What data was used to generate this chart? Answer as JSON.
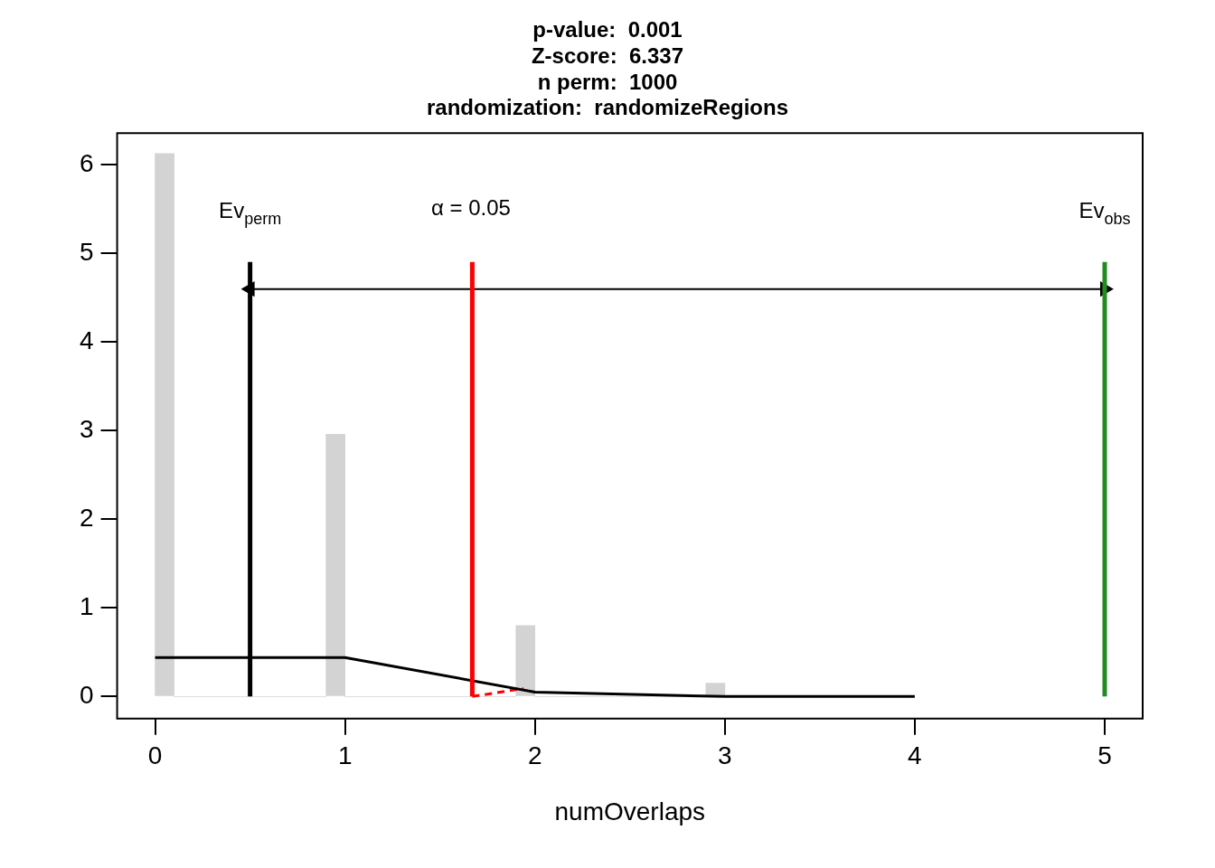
{
  "chart_data": {
    "type": "histogram",
    "title": "p-value:  0.001\nZ-score:  6.337\nn perm:  1000\nrandomization:  randomizeRegions",
    "xlabel": "numOverlaps",
    "bins": [
      0,
      0.1,
      0.2,
      0.3,
      0.4,
      0.5,
      0.6,
      0.7,
      0.8,
      0.9,
      1,
      1.1,
      1.2,
      1.3,
      1.4,
      1.5,
      1.6,
      1.7,
      1.8,
      1.9,
      2,
      2.1,
      2.2,
      2.3,
      2.4,
      2.5,
      2.6,
      2.7,
      2.8,
      2.9,
      3
    ],
    "values": [
      6.13,
      0,
      0,
      0,
      0,
      0,
      0,
      0,
      0,
      2.96,
      0,
      0,
      0,
      0,
      0,
      0,
      0,
      0,
      0,
      0.8,
      0,
      0,
      0,
      0,
      0,
      0,
      0,
      0,
      0,
      0.15
    ],
    "color": "#d3d3d3",
    "series": [
      {
        "type": "line",
        "color": "#000000",
        "x": [
          0,
          1,
          2,
          3,
          4
        ],
        "values": [
          0.44,
          0.44,
          0.05,
          0,
          0
        ]
      },
      {
        "type": "line",
        "color": "#ff0000",
        "line_style": "dashed",
        "x": [
          1.67,
          1.94
        ],
        "values": [
          0,
          0.09
        ]
      },
      {
        "type": "line",
        "color": "#000000",
        "marker": "triangle",
        "x": [
          0.5,
          5
        ],
        "values": [
          4.6,
          4.6
        ]
      }
    ],
    "ref_lines": [
      {
        "axis": "x",
        "value": 0.5,
        "label": "Ev$_{perm}$",
        "color": "#000000"
      },
      {
        "axis": "x",
        "value": 1.67,
        "color": "#ff0000"
      },
      {
        "axis": "x",
        "value": 5,
        "label": "Ev$_{obs}$",
        "color": "#228b22"
      }
    ],
    "annotations": [
      "α = 0.05"
    ],
    "xlim": [
      -0.2,
      5.2
    ],
    "ylim": [
      -0.25,
      6.36
    ],
    "xticks": [
      0,
      1,
      2,
      3,
      4,
      5
    ],
    "yticks": [
      0,
      1,
      2,
      3,
      4,
      5,
      6
    ],
    "grid": false
  }
}
